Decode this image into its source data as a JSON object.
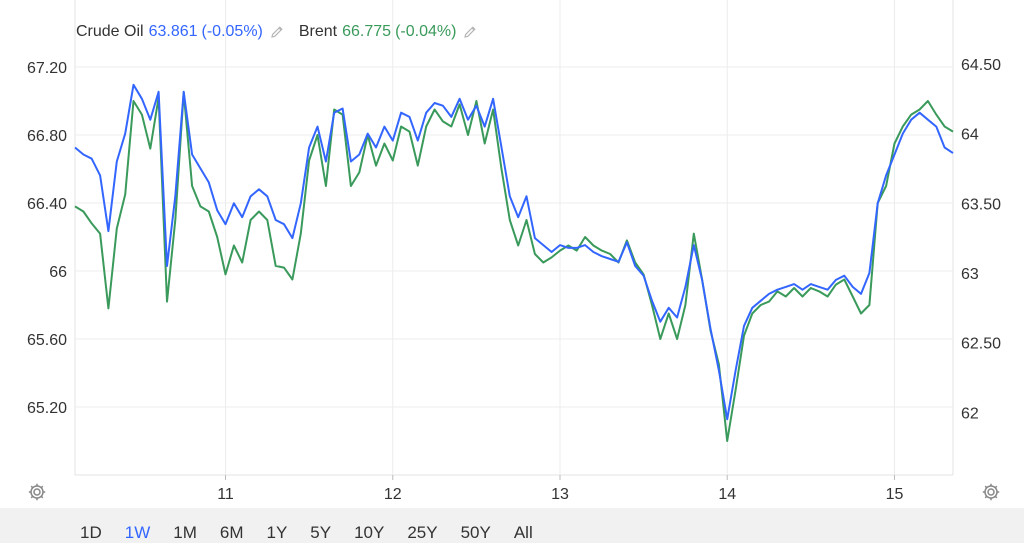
{
  "legend": {
    "s1": {
      "name": "Crude Oil",
      "value": "63.861",
      "change": "(-0.05%)",
      "color": "#3366ff"
    },
    "s2": {
      "name": "Brent",
      "value": "66.775",
      "change": "(-0.04%)",
      "color": "#3a9a5b"
    }
  },
  "ranges": [
    "1D",
    "1W",
    "1M",
    "6M",
    "1Y",
    "5Y",
    "10Y",
    "25Y",
    "50Y",
    "All"
  ],
  "active_range": "1W",
  "icons": {
    "edit": "pencil-icon",
    "settings": "gear-icon"
  },
  "chart_data": {
    "type": "line",
    "x_tick_labels": [
      "11",
      "12",
      "13",
      "14",
      "15"
    ],
    "left_axis": {
      "ticks": [
        65.2,
        65.6,
        66.0,
        66.4,
        66.8,
        67.2
      ],
      "labels": [
        "65.20",
        "65.60",
        "66",
        "66.40",
        "66.80",
        "67.20"
      ],
      "ylim": [
        64.8,
        67.3
      ],
      "series": "Brent"
    },
    "right_axis": {
      "ticks": [
        62.0,
        62.5,
        63.0,
        63.5,
        64.0,
        64.5
      ],
      "labels": [
        "62",
        "62.50",
        "63",
        "63.50",
        "64",
        "64.50"
      ],
      "ylim": [
        61.55,
        64.6
      ],
      "series": "Crude Oil"
    },
    "x_range": [
      10.1,
      15.35
    ],
    "grid": true,
    "series": [
      {
        "name": "Brent",
        "axis": "left",
        "color": "#3a9a5b",
        "x": [
          10.1,
          10.15,
          10.2,
          10.25,
          10.3,
          10.35,
          10.4,
          10.45,
          10.5,
          10.55,
          10.6,
          10.65,
          10.7,
          10.75,
          10.8,
          10.85,
          10.9,
          10.95,
          11.0,
          11.05,
          11.1,
          11.15,
          11.2,
          11.25,
          11.3,
          11.35,
          11.4,
          11.45,
          11.5,
          11.55,
          11.6,
          11.65,
          11.7,
          11.75,
          11.8,
          11.85,
          11.9,
          11.95,
          12.0,
          12.05,
          12.1,
          12.15,
          12.2,
          12.25,
          12.3,
          12.35,
          12.4,
          12.45,
          12.5,
          12.55,
          12.6,
          12.65,
          12.7,
          12.75,
          12.8,
          12.85,
          12.9,
          12.95,
          13.0,
          13.05,
          13.1,
          13.15,
          13.2,
          13.25,
          13.3,
          13.35,
          13.4,
          13.45,
          13.5,
          13.55,
          13.6,
          13.65,
          13.7,
          13.75,
          13.8,
          13.85,
          13.9,
          13.95,
          14.0,
          14.05,
          14.1,
          14.15,
          14.2,
          14.25,
          14.3,
          14.35,
          14.4,
          14.45,
          14.5,
          14.55,
          14.6,
          14.65,
          14.7,
          14.75,
          14.8,
          14.85,
          14.9,
          14.95,
          15.0,
          15.05,
          15.1,
          15.15,
          15.2,
          15.25,
          15.3,
          15.35
        ],
        "values": [
          66.38,
          66.35,
          66.28,
          66.22,
          65.78,
          66.25,
          66.45,
          67.0,
          66.92,
          66.72,
          67.02,
          65.82,
          66.3,
          67.05,
          66.5,
          66.38,
          66.35,
          66.2,
          65.98,
          66.15,
          66.05,
          66.3,
          66.35,
          66.3,
          66.03,
          66.02,
          65.95,
          66.22,
          66.65,
          66.8,
          66.5,
          66.95,
          66.92,
          66.5,
          66.58,
          66.8,
          66.62,
          66.75,
          66.65,
          66.85,
          66.82,
          66.62,
          66.85,
          66.95,
          66.88,
          66.85,
          66.98,
          66.8,
          67.0,
          66.75,
          66.95,
          66.6,
          66.3,
          66.15,
          66.3,
          66.1,
          66.05,
          66.08,
          66.12,
          66.15,
          66.12,
          66.2,
          66.15,
          66.12,
          66.1,
          66.05,
          66.18,
          66.05,
          65.98,
          65.8,
          65.6,
          65.75,
          65.6,
          65.8,
          66.22,
          65.95,
          65.65,
          65.45,
          65.0,
          65.3,
          65.62,
          65.75,
          65.8,
          65.82,
          65.88,
          65.85,
          65.9,
          65.85,
          65.9,
          65.88,
          65.85,
          65.92,
          65.95,
          65.85,
          65.75,
          65.8,
          66.4,
          66.5,
          66.75,
          66.85,
          66.92,
          66.95,
          67.0,
          66.92,
          66.85,
          66.82
        ]
      },
      {
        "name": "Crude Oil",
        "axis": "right",
        "color": "#3366ff",
        "x": [
          10.1,
          10.15,
          10.2,
          10.25,
          10.3,
          10.35,
          10.4,
          10.45,
          10.5,
          10.55,
          10.6,
          10.65,
          10.7,
          10.75,
          10.8,
          10.85,
          10.9,
          10.95,
          11.0,
          11.05,
          11.1,
          11.15,
          11.2,
          11.25,
          11.3,
          11.35,
          11.4,
          11.45,
          11.5,
          11.55,
          11.6,
          11.65,
          11.7,
          11.75,
          11.8,
          11.85,
          11.9,
          11.95,
          12.0,
          12.05,
          12.1,
          12.15,
          12.2,
          12.25,
          12.3,
          12.35,
          12.4,
          12.45,
          12.5,
          12.55,
          12.6,
          12.65,
          12.7,
          12.75,
          12.8,
          12.85,
          12.9,
          12.95,
          13.0,
          13.05,
          13.1,
          13.15,
          13.2,
          13.25,
          13.3,
          13.35,
          13.4,
          13.45,
          13.5,
          13.55,
          13.6,
          13.65,
          13.7,
          13.75,
          13.8,
          13.85,
          13.9,
          13.95,
          14.0,
          14.05,
          14.1,
          14.15,
          14.2,
          14.25,
          14.3,
          14.35,
          14.4,
          14.45,
          14.5,
          14.55,
          14.6,
          14.65,
          14.7,
          14.75,
          14.8,
          14.85,
          14.9,
          14.95,
          15.0,
          15.05,
          15.1,
          15.15,
          15.2,
          15.25,
          15.3,
          15.35
        ],
        "values": [
          63.9,
          63.85,
          63.82,
          63.7,
          63.3,
          63.8,
          64.0,
          64.35,
          64.25,
          64.1,
          64.3,
          63.05,
          63.55,
          64.3,
          63.85,
          63.75,
          63.65,
          63.45,
          63.35,
          63.5,
          63.4,
          63.55,
          63.6,
          63.55,
          63.38,
          63.35,
          63.25,
          63.5,
          63.9,
          64.05,
          63.8,
          64.15,
          64.18,
          63.8,
          63.85,
          64.0,
          63.9,
          64.05,
          63.95,
          64.15,
          64.12,
          63.95,
          64.15,
          64.22,
          64.2,
          64.12,
          64.25,
          64.1,
          64.2,
          64.05,
          64.25,
          63.9,
          63.55,
          63.4,
          63.55,
          63.25,
          63.2,
          63.15,
          63.2,
          63.18,
          63.18,
          63.2,
          63.15,
          63.12,
          63.1,
          63.08,
          63.22,
          63.05,
          62.98,
          62.8,
          62.65,
          62.75,
          62.68,
          62.9,
          63.2,
          62.95,
          62.6,
          62.3,
          61.95,
          62.3,
          62.62,
          62.75,
          62.8,
          62.85,
          62.88,
          62.9,
          62.92,
          62.88,
          62.92,
          62.9,
          62.88,
          62.95,
          62.98,
          62.9,
          62.85,
          63.0,
          63.5,
          63.7,
          63.85,
          64.0,
          64.1,
          64.15,
          64.1,
          64.05,
          63.9,
          63.86
        ]
      }
    ]
  }
}
